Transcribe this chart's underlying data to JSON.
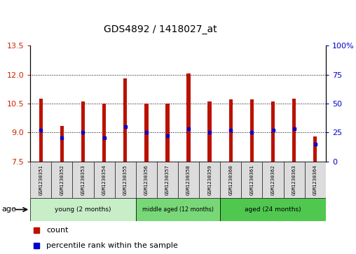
{
  "title": "GDS4892 / 1418027_at",
  "samples": [
    "GSM1230351",
    "GSM1230352",
    "GSM1230353",
    "GSM1230354",
    "GSM1230355",
    "GSM1230356",
    "GSM1230357",
    "GSM1230358",
    "GSM1230359",
    "GSM1230360",
    "GSM1230361",
    "GSM1230362",
    "GSM1230363",
    "GSM1230364"
  ],
  "count_values": [
    10.75,
    9.35,
    10.6,
    10.5,
    11.8,
    10.5,
    10.5,
    12.05,
    10.6,
    10.7,
    10.7,
    10.6,
    10.75,
    8.8
  ],
  "percentile_values": [
    27,
    20,
    25,
    20,
    30,
    25,
    22,
    28,
    25,
    27,
    25,
    27,
    28,
    15
  ],
  "y_min": 7.5,
  "y_max": 13.5,
  "y_ticks": [
    7.5,
    9.0,
    10.5,
    12.0,
    13.5
  ],
  "groups": [
    {
      "label": "young (2 months)",
      "start": 0,
      "end": 5,
      "color": "#b8e8b8"
    },
    {
      "label": "middle aged (12 months)",
      "start": 5,
      "end": 9,
      "color": "#70d070"
    },
    {
      "label": "aged (24 months)",
      "start": 9,
      "end": 14,
      "color": "#50c850"
    }
  ],
  "bar_color": "#BB1100",
  "dot_color": "#0000CC",
  "bar_bottom": 7.5,
  "left_tick_color": "#CC2200",
  "right_tick_color": "#0000CC",
  "legend_count_label": "count",
  "legend_percentile_label": "percentile rank within the sample",
  "age_label": "age"
}
